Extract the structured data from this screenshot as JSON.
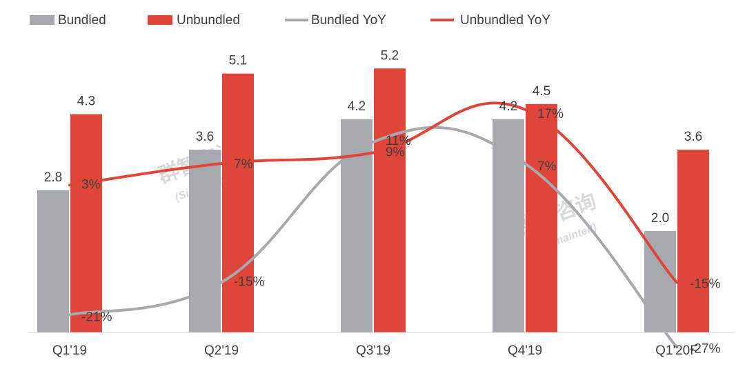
{
  "chart_data": {
    "type": "bar",
    "categories": [
      "Q1'19",
      "Q2'19",
      "Q3'19",
      "Q4'19",
      "Q1'20F"
    ],
    "series": [
      {
        "name": "Bundled",
        "kind": "bar",
        "values": [
          2.8,
          3.6,
          4.2,
          4.2,
          2.0
        ],
        "labels": [
          "2.8",
          "3.6",
          "4.2",
          "4.2",
          "2.0"
        ],
        "color": "#a6a9ad"
      },
      {
        "name": "Unbundled",
        "kind": "bar",
        "values": [
          4.3,
          5.1,
          5.2,
          4.5,
          3.6
        ],
        "labels": [
          "4.3",
          "5.1",
          "5.2",
          "4.5",
          "3.6"
        ],
        "color": "#e0453a"
      },
      {
        "name": "Bundled YoY",
        "kind": "line",
        "values": [
          -21,
          -15,
          11,
          7,
          -27
        ],
        "labels": [
          "-21%",
          "-15%",
          "11%",
          "7%",
          "-27%"
        ],
        "color": "#a6a9ad"
      },
      {
        "name": "Unbundled YoY",
        "kind": "line",
        "values": [
          3,
          7,
          9,
          17,
          -15
        ],
        "labels": [
          "3%",
          "7%",
          "9%",
          "17%",
          "-15%"
        ],
        "color": "#e0453a"
      }
    ],
    "legend_position": "top-left",
    "grid": false
  },
  "watermark": {
    "text_cn": "群智咨询",
    "text_en": "(Sigmaintell)"
  }
}
